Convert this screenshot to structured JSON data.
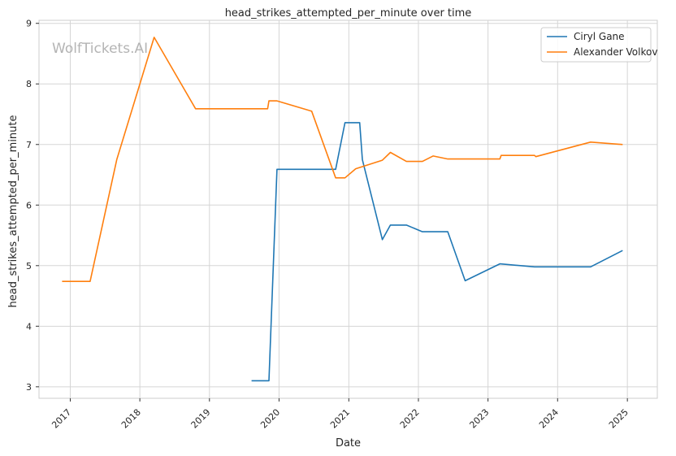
{
  "chart_data": {
    "type": "line",
    "title": "head_strikes_attempted_per_minute over time",
    "xlabel": "Date",
    "ylabel": "head_strikes_attempted_per_minute",
    "xlim": [
      "2016-07-21",
      "2025-06-07"
    ],
    "ylim": [
      2.81,
      9.05
    ],
    "x_ticks": [
      "2017-01-01",
      "2018-01-01",
      "2019-01-01",
      "2020-01-01",
      "2021-01-01",
      "2022-01-01",
      "2023-01-01",
      "2024-01-01",
      "2025-01-01"
    ],
    "x_tick_labels": [
      "2017",
      "2018",
      "2019",
      "2020",
      "2021",
      "2022",
      "2023",
      "2024",
      "2025"
    ],
    "y_ticks": [
      3,
      4,
      5,
      6,
      7,
      8,
      9
    ],
    "y_tick_labels": [
      "3",
      "4",
      "5",
      "6",
      "7",
      "8",
      "9"
    ],
    "grid": true,
    "legend_position": "top-right",
    "watermark": "WolfTickets.AI",
    "series": [
      {
        "name": "Ciryl Gane",
        "color": "#1f77b4",
        "points": [
          [
            "2019-08-10",
            3.1
          ],
          [
            "2019-11-09",
            3.1
          ],
          [
            "2019-12-21",
            6.59
          ],
          [
            "2020-10-24",
            6.59
          ],
          [
            "2020-12-12",
            7.36
          ],
          [
            "2021-02-27",
            7.36
          ],
          [
            "2021-03-13",
            6.75
          ],
          [
            "2021-06-26",
            5.43
          ],
          [
            "2021-08-07",
            5.67
          ],
          [
            "2021-10-30",
            5.67
          ],
          [
            "2022-01-22",
            5.56
          ],
          [
            "2022-06-04",
            5.56
          ],
          [
            "2022-09-03",
            4.75
          ],
          [
            "2023-03-04",
            5.03
          ],
          [
            "2023-09-02",
            4.98
          ],
          [
            "2024-06-22",
            4.98
          ],
          [
            "2024-12-07",
            5.25
          ]
        ]
      },
      {
        "name": "Alexander Volkov",
        "color": "#ff7f0e",
        "points": [
          [
            "2016-11-19",
            4.74
          ],
          [
            "2017-04-15",
            4.74
          ],
          [
            "2017-09-02",
            6.75
          ],
          [
            "2018-03-17",
            8.77
          ],
          [
            "2018-10-20",
            7.59
          ],
          [
            "2019-11-02",
            7.59
          ],
          [
            "2019-11-09",
            7.72
          ],
          [
            "2019-12-21",
            7.72
          ],
          [
            "2020-06-20",
            7.55
          ],
          [
            "2020-10-24",
            6.45
          ],
          [
            "2020-12-12",
            6.45
          ],
          [
            "2021-02-06",
            6.6
          ],
          [
            "2021-06-26",
            6.74
          ],
          [
            "2021-08-07",
            6.87
          ],
          [
            "2021-10-30",
            6.72
          ],
          [
            "2022-01-22",
            6.72
          ],
          [
            "2022-03-19",
            6.81
          ],
          [
            "2022-06-04",
            6.76
          ],
          [
            "2023-03-04",
            6.76
          ],
          [
            "2023-03-11",
            6.82
          ],
          [
            "2023-09-02",
            6.82
          ],
          [
            "2023-09-09",
            6.8
          ],
          [
            "2024-06-22",
            7.04
          ],
          [
            "2024-12-07",
            7.0
          ]
        ]
      }
    ]
  }
}
